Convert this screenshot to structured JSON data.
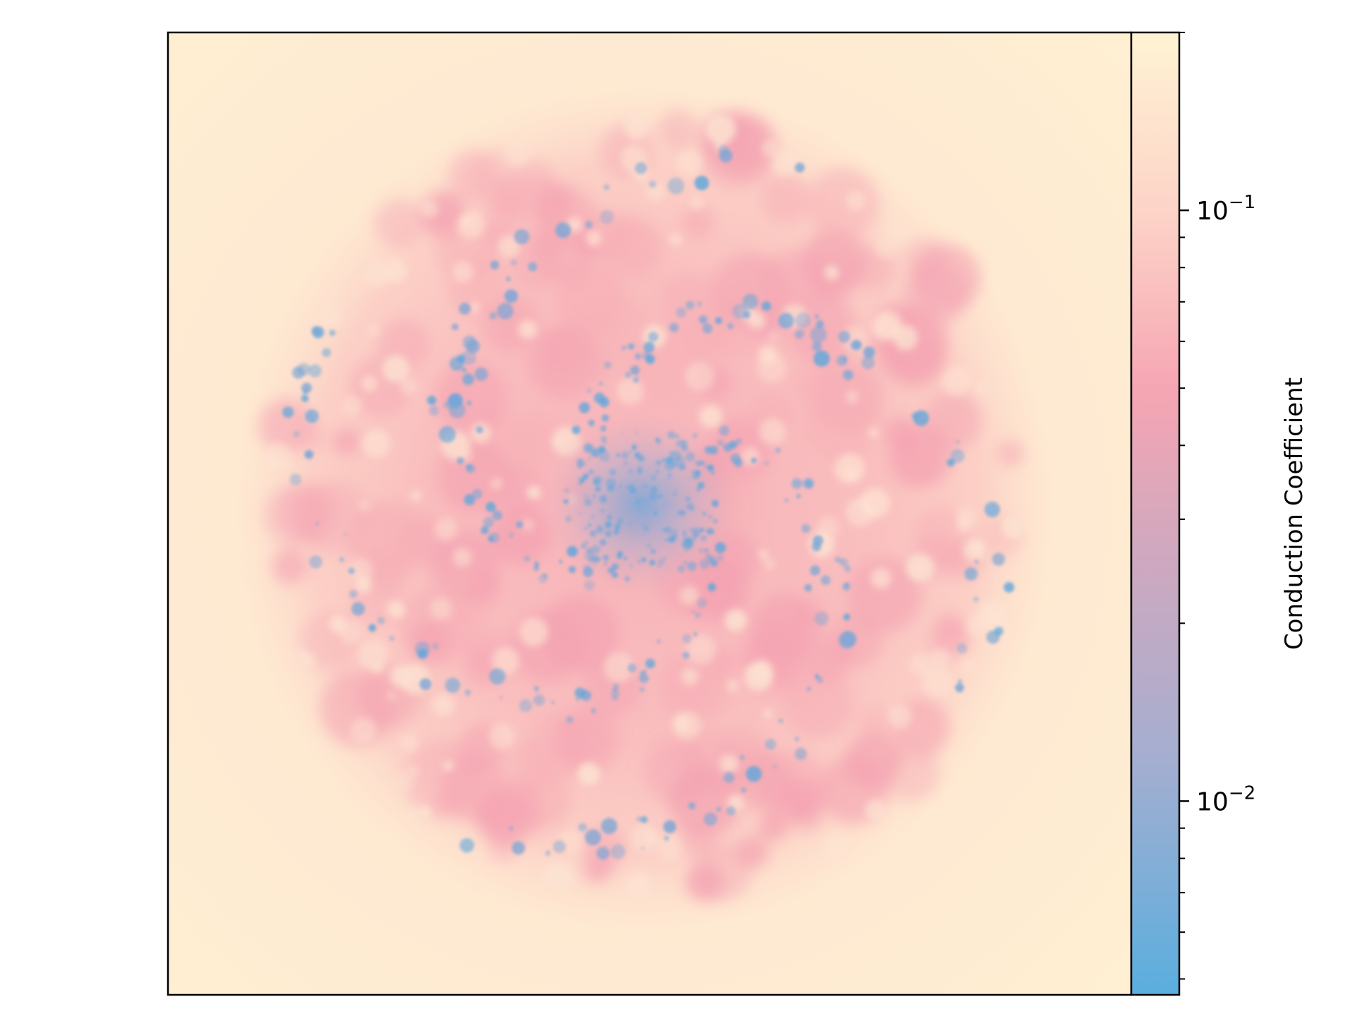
{
  "chart_data": {
    "type": "heatmap",
    "title": "",
    "xlabel": "",
    "ylabel": "",
    "description_of_field": "spiral-disc projection map, low values (blue) in clumpy spiral filaments and center, high values (cream) outside disc",
    "colormap": {
      "scale": "log",
      "range": [
        0.0047,
        0.2
      ],
      "stops": [
        {
          "value": 0.0047,
          "color": "#5aaede"
        },
        {
          "value": 0.012,
          "color": "#a6aed0"
        },
        {
          "value": 0.03,
          "color": "#d7a7bc"
        },
        {
          "value": 0.05,
          "color": "#f6a6b3"
        },
        {
          "value": 0.1,
          "color": "#fdd4c8"
        },
        {
          "value": 0.2,
          "color": "#fff3d3"
        }
      ]
    },
    "colorbar": {
      "label": "Conduction Coefficient",
      "ticks": [
        {
          "value": 0.1,
          "base": "10",
          "exponent": "−1"
        },
        {
          "value": 0.01,
          "base": "10",
          "exponent": "−2"
        }
      ],
      "minor_ticks": [
        0.005,
        0.006,
        0.007,
        0.008,
        0.009,
        0.02,
        0.03,
        0.04,
        0.05,
        0.06,
        0.07,
        0.08,
        0.09,
        0.2
      ]
    },
    "grid": false,
    "legend": "none"
  }
}
